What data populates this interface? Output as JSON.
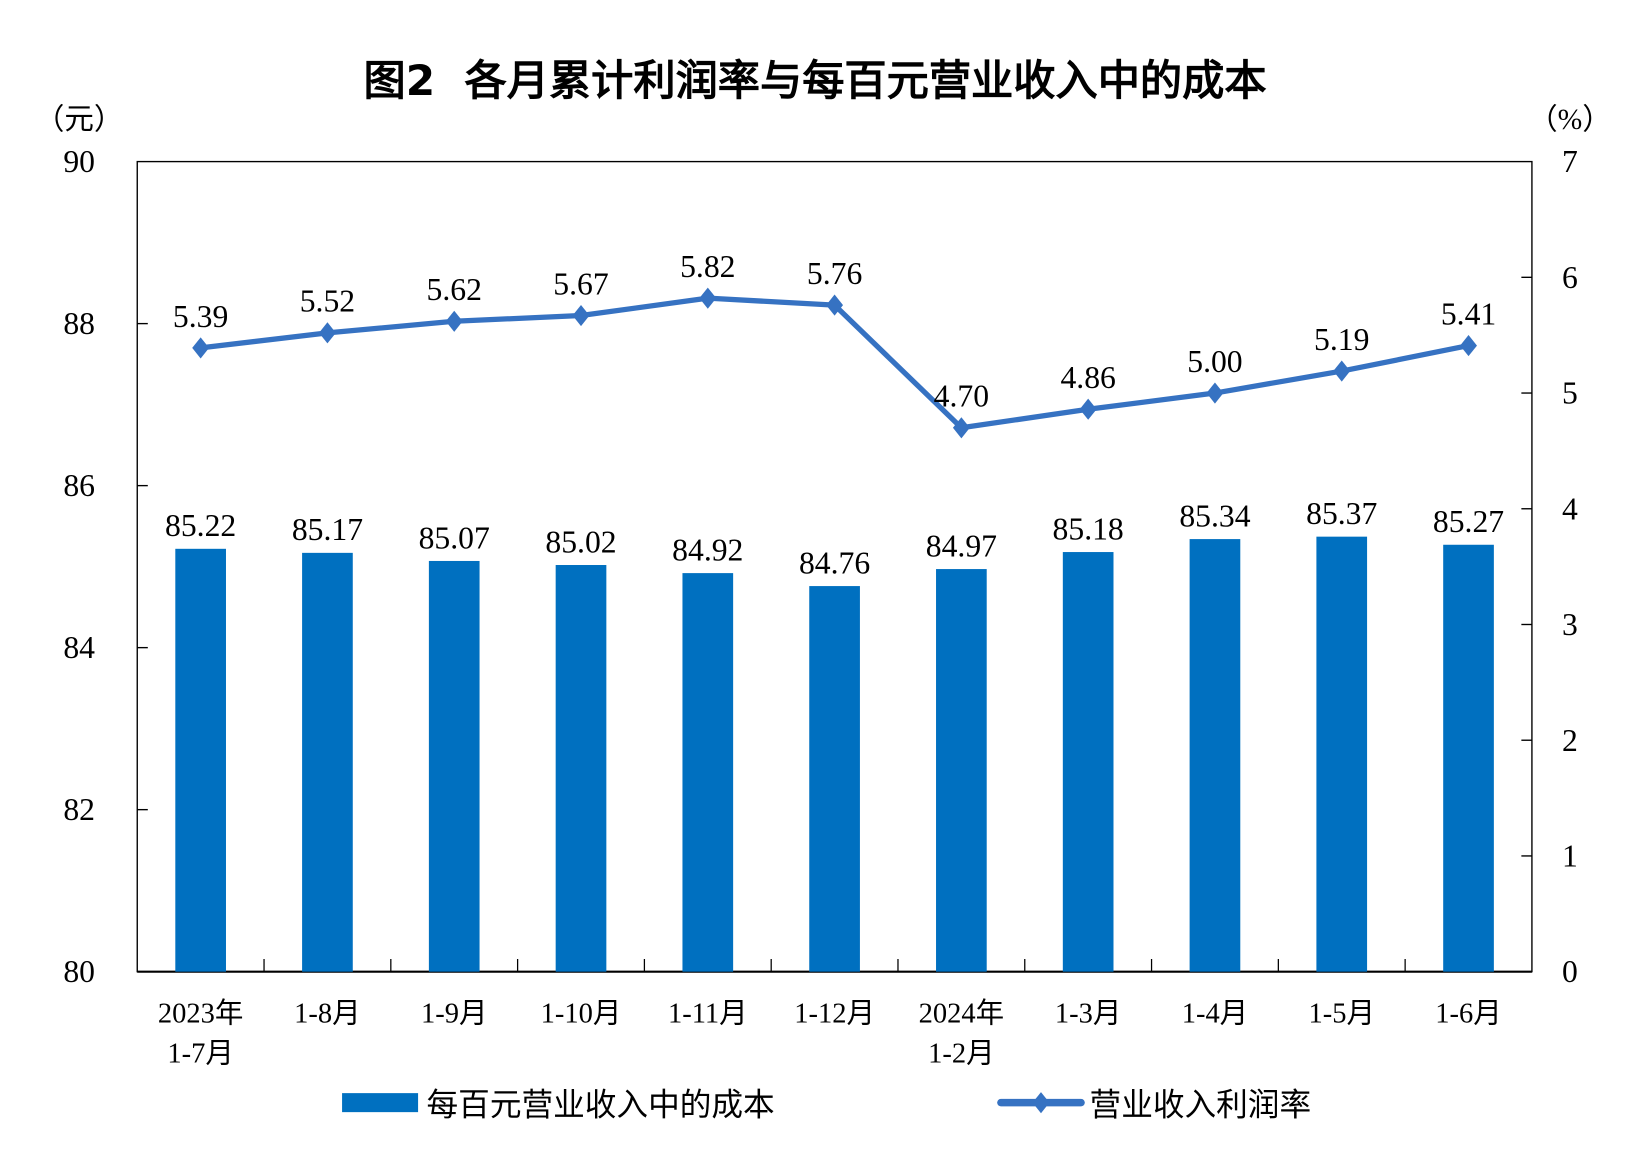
{
  "chart_data": {
    "type": "bar+line",
    "title": "图2  各月累计利润率与每百元营业收入中的成本",
    "left_unit": "（元）",
    "right_unit": "（%）",
    "categories": [
      [
        "2023年",
        "1-7月"
      ],
      [
        "1-8月"
      ],
      [
        "1-9月"
      ],
      [
        "1-10月"
      ],
      [
        "1-11月"
      ],
      [
        "1-12月"
      ],
      [
        "2024年",
        "1-2月"
      ],
      [
        "1-3月"
      ],
      [
        "1-4月"
      ],
      [
        "1-5月"
      ],
      [
        "1-6月"
      ]
    ],
    "left_axis": {
      "ylim": [
        80,
        90
      ],
      "ticks": [
        80,
        82,
        84,
        86,
        88,
        90
      ]
    },
    "right_axis": {
      "ylim": [
        0,
        7
      ],
      "ticks": [
        0,
        1,
        2,
        3,
        4,
        5,
        6,
        7
      ]
    },
    "grid": false,
    "legend_position": "bottom",
    "series": [
      {
        "name": "每百元营业收入中的成本",
        "kind": "bar",
        "axis": "left",
        "color": "#0070c0",
        "values": [
          85.22,
          85.17,
          85.07,
          85.02,
          84.92,
          84.76,
          84.97,
          85.18,
          85.34,
          85.37,
          85.27
        ],
        "labels": [
          "85.22",
          "85.17",
          "85.07",
          "85.02",
          "84.92",
          "84.76",
          "84.97",
          "85.18",
          "85.34",
          "85.37",
          "85.27"
        ]
      },
      {
        "name": "营业收入利润率",
        "kind": "line",
        "axis": "right",
        "color": "#3672c2",
        "marker": "diamond",
        "values": [
          5.39,
          5.52,
          5.62,
          5.67,
          5.82,
          5.76,
          4.7,
          4.86,
          5.0,
          5.19,
          5.41
        ],
        "labels": [
          "5.39",
          "5.52",
          "5.62",
          "5.67",
          "5.82",
          "5.76",
          "4.70",
          "4.86",
          "5.00",
          "5.19",
          "5.41"
        ]
      }
    ]
  }
}
